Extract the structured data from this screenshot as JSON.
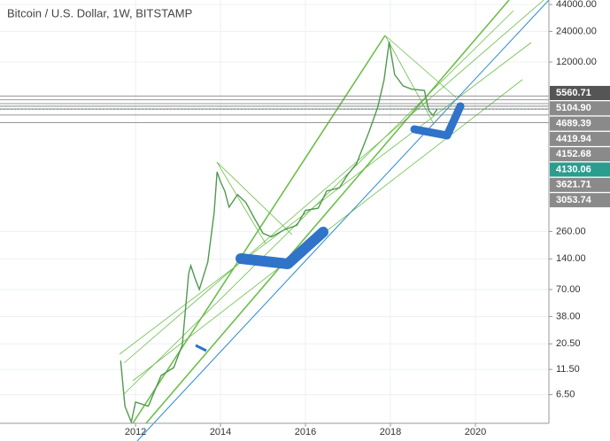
{
  "chart_data": {
    "type": "line",
    "title": "Bitcoin / U.S. Dollar, 1W, BITSTAMP",
    "log_scale": true,
    "grid": true,
    "color": "#4f9a4f",
    "x": [
      2011.65,
      2011.75,
      2011.9,
      2012.0,
      2012.3,
      2012.6,
      2012.9,
      2013.1,
      2013.25,
      2013.3,
      2013.4,
      2013.5,
      2013.7,
      2013.85,
      2013.92,
      2014.0,
      2014.1,
      2014.2,
      2014.4,
      2014.6,
      2014.8,
      2015.0,
      2015.2,
      2015.5,
      2015.8,
      2016.0,
      2016.3,
      2016.5,
      2016.8,
      2017.0,
      2017.2,
      2017.5,
      2017.7,
      2017.85,
      2017.97,
      2018.1,
      2018.3,
      2018.5,
      2018.8,
      2018.9,
      2019.0,
      2019.1
    ],
    "values": [
      14,
      5,
      3.5,
      5.5,
      5,
      10,
      12,
      20,
      100,
      120,
      90,
      70,
      130,
      400,
      1000,
      800,
      650,
      450,
      600,
      500,
      350,
      250,
      230,
      270,
      300,
      420,
      440,
      650,
      700,
      950,
      1200,
      2500,
      4300,
      8000,
      19000,
      9000,
      7000,
      6500,
      6300,
      4000,
      3600,
      4130.06
    ],
    "xlim": [
      2008.81,
      2021.73
    ],
    "xticks": [
      2012,
      2014,
      2016,
      2018,
      2020
    ],
    "ylim": [
      3.4,
      48800
    ],
    "yticks": [
      {
        "value": 44000,
        "label": "44000.00"
      },
      {
        "value": 24000,
        "label": "24000.00"
      },
      {
        "value": 12000,
        "label": "12000.00"
      },
      {
        "value": 260,
        "label": "260.00"
      },
      {
        "value": 140,
        "label": "140.00"
      },
      {
        "value": 70,
        "label": "70.00"
      },
      {
        "value": 38,
        "label": "38.00"
      },
      {
        "value": 20.5,
        "label": "20.50"
      },
      {
        "value": 11.5,
        "label": "11.50"
      },
      {
        "value": 6.5,
        "label": "6.50"
      }
    ],
    "price_lines": [
      {
        "value": 5560.71,
        "label": "5560.71"
      },
      {
        "value": 5104.9,
        "label": "5104.90"
      },
      {
        "value": 4689.39,
        "label": "4689.39"
      },
      {
        "value": 4419.94,
        "label": "4419.94"
      },
      {
        "value": 4152.68,
        "label": "4152.68"
      },
      {
        "value": 4130.06,
        "label": "4130.06"
      },
      {
        "value": 3621.71,
        "label": "3621.71"
      },
      {
        "value": 3053.74,
        "label": "3053.74"
      }
    ],
    "last_value_color": "#2a9d8f"
  }
}
